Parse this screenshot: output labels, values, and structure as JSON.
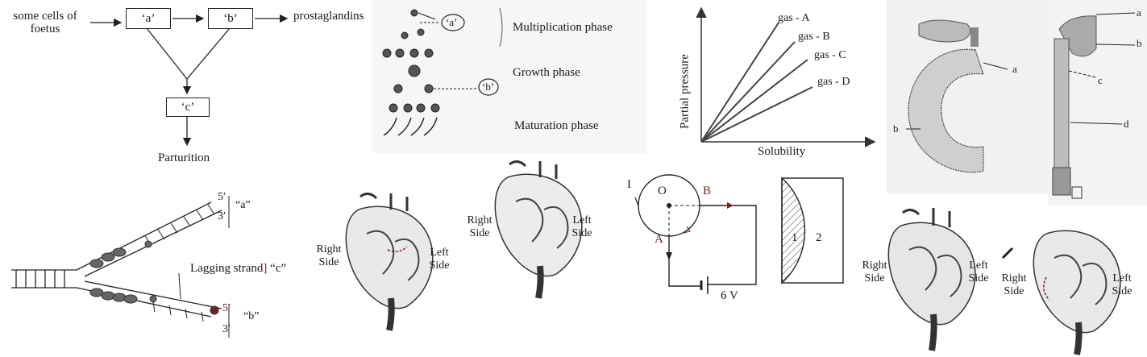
{
  "flowchart": {
    "source_line1": "some cells of",
    "source_line2": "foetus",
    "box_a": "‘a’",
    "box_b": "‘b’",
    "output": "prostaglandins",
    "box_c": "‘c’",
    "result": "Parturition"
  },
  "spermatogenesis": {
    "marker_a": "‘a’",
    "marker_b": "‘b’",
    "phases": [
      "Multiplication phase",
      "Growth phase",
      "Maturation phase"
    ]
  },
  "gas_chart": {
    "ylabel": "Partial pressure",
    "xlabel": "Solubility",
    "series": [
      "gas - A",
      "gas - B",
      "gas - C",
      "gas - D"
    ]
  },
  "organ": {
    "label_a": "a",
    "label_b": "b"
  },
  "arm": {
    "labels": [
      "a",
      "b",
      "c",
      "d"
    ]
  },
  "replication": {
    "top_5": "5′",
    "top_3": "3′",
    "top_label": "“a”",
    "lagging": "Lagging strand",
    "lagging_label": "“c”",
    "bot_5": "5′",
    "bot_3": "3′",
    "bot_label": "“b”"
  },
  "hearts": [
    {
      "right_line1": "Right",
      "right_line2": "Side",
      "left_line1": "Left",
      "left_line2": "Side"
    },
    {
      "right_line1": "Right",
      "right_line2": "Side",
      "left_line1": "Left",
      "left_line2": "Side"
    },
    {
      "right_line1": "Right",
      "right_line2": "Side",
      "left_line1": "Left",
      "left_line2": "Side"
    },
    {
      "right_line1": "Right",
      "right_line2": "Side",
      "left_line1": "Left",
      "left_line2": "Side"
    }
  ],
  "circuit": {
    "current": "I",
    "center": "O",
    "point_a": "A",
    "point_b": "B",
    "battery": "6 V"
  },
  "regions": {
    "region_1": "1",
    "region_2": "2"
  },
  "colors": {
    "ink": "#1a1a1a",
    "accent_red": "#7a1f1f",
    "paper_gray": "#f3f3f3"
  }
}
